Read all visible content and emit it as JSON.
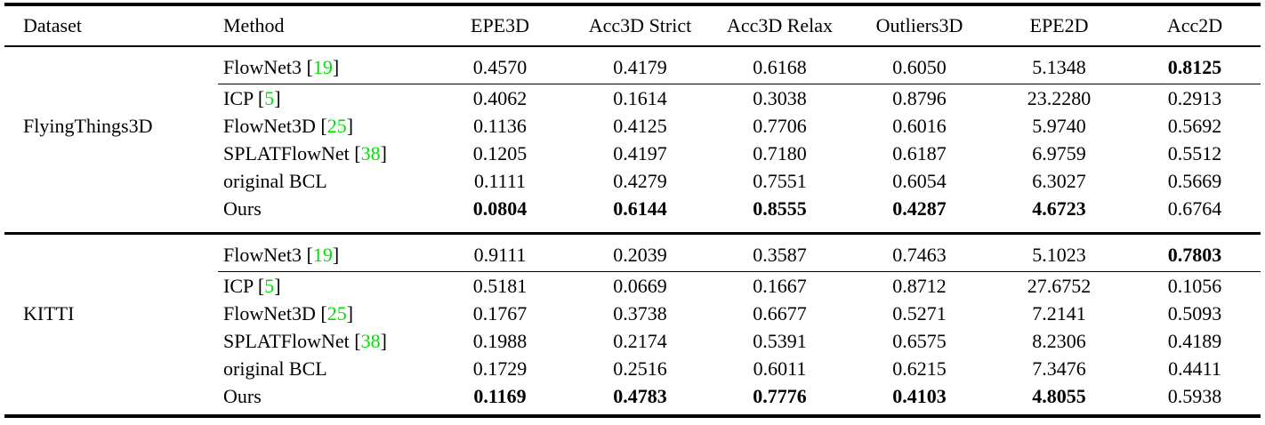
{
  "colors": {
    "citation_green": "#00e000",
    "text": "#000000",
    "background": "#ffffff"
  },
  "table": {
    "columns": [
      "Dataset",
      "Method",
      "EPE3D",
      "Acc3D Strict",
      "Acc3D Relax",
      "Outliers3D",
      "EPE2D",
      "Acc2D"
    ],
    "groups": [
      {
        "dataset": "FlyingThings3D",
        "rows": [
          {
            "method": "FlowNet3",
            "cite": "19",
            "values": [
              "0.4570",
              "0.4179",
              "0.6168",
              "0.6050",
              "5.1348",
              "0.8125"
            ],
            "bold": [
              false,
              false,
              false,
              false,
              false,
              true
            ],
            "rule_after": true
          },
          {
            "method": "ICP",
            "cite": "5",
            "values": [
              "0.4062",
              "0.1614",
              "0.3038",
              "0.8796",
              "23.2280",
              "0.2913"
            ],
            "bold": [
              false,
              false,
              false,
              false,
              false,
              false
            ],
            "rule_after": false
          },
          {
            "method": "FlowNet3D",
            "cite": "25",
            "values": [
              "0.1136",
              "0.4125",
              "0.7706",
              "0.6016",
              "5.9740",
              "0.5692"
            ],
            "bold": [
              false,
              false,
              false,
              false,
              false,
              false
            ],
            "rule_after": false
          },
          {
            "method": "SPLATFlowNet",
            "cite": "38",
            "values": [
              "0.1205",
              "0.4197",
              "0.7180",
              "0.6187",
              "6.9759",
              "0.5512"
            ],
            "bold": [
              false,
              false,
              false,
              false,
              false,
              false
            ],
            "rule_after": false
          },
          {
            "method": "original BCL",
            "cite": null,
            "values": [
              "0.1111",
              "0.4279",
              "0.7551",
              "0.6054",
              "6.3027",
              "0.5669"
            ],
            "bold": [
              false,
              false,
              false,
              false,
              false,
              false
            ],
            "rule_after": false
          },
          {
            "method": "Ours",
            "cite": null,
            "values": [
              "0.0804",
              "0.6144",
              "0.8555",
              "0.4287",
              "4.6723",
              "0.6764"
            ],
            "bold": [
              true,
              true,
              true,
              true,
              true,
              false
            ],
            "rule_after": false
          }
        ]
      },
      {
        "dataset": "KITTI",
        "rows": [
          {
            "method": "FlowNet3",
            "cite": "19",
            "values": [
              "0.9111",
              "0.2039",
              "0.3587",
              "0.7463",
              "5.1023",
              "0.7803"
            ],
            "bold": [
              false,
              false,
              false,
              false,
              false,
              true
            ],
            "rule_after": true
          },
          {
            "method": "ICP",
            "cite": "5",
            "values": [
              "0.5181",
              "0.0669",
              "0.1667",
              "0.8712",
              "27.6752",
              "0.1056"
            ],
            "bold": [
              false,
              false,
              false,
              false,
              false,
              false
            ],
            "rule_after": false
          },
          {
            "method": "FlowNet3D",
            "cite": "25",
            "values": [
              "0.1767",
              "0.3738",
              "0.6677",
              "0.5271",
              "7.2141",
              "0.5093"
            ],
            "bold": [
              false,
              false,
              false,
              false,
              false,
              false
            ],
            "rule_after": false
          },
          {
            "method": "SPLATFlowNet",
            "cite": "38",
            "values": [
              "0.1988",
              "0.2174",
              "0.5391",
              "0.6575",
              "8.2306",
              "0.4189"
            ],
            "bold": [
              false,
              false,
              false,
              false,
              false,
              false
            ],
            "rule_after": false
          },
          {
            "method": "original BCL",
            "cite": null,
            "values": [
              "0.1729",
              "0.2516",
              "0.6011",
              "0.6215",
              "7.3476",
              "0.4411"
            ],
            "bold": [
              false,
              false,
              false,
              false,
              false,
              false
            ],
            "rule_after": false
          },
          {
            "method": "Ours",
            "cite": null,
            "values": [
              "0.1169",
              "0.4783",
              "0.7776",
              "0.4103",
              "4.8055",
              "0.5938"
            ],
            "bold": [
              true,
              true,
              true,
              true,
              true,
              false
            ],
            "rule_after": false
          }
        ]
      }
    ]
  }
}
